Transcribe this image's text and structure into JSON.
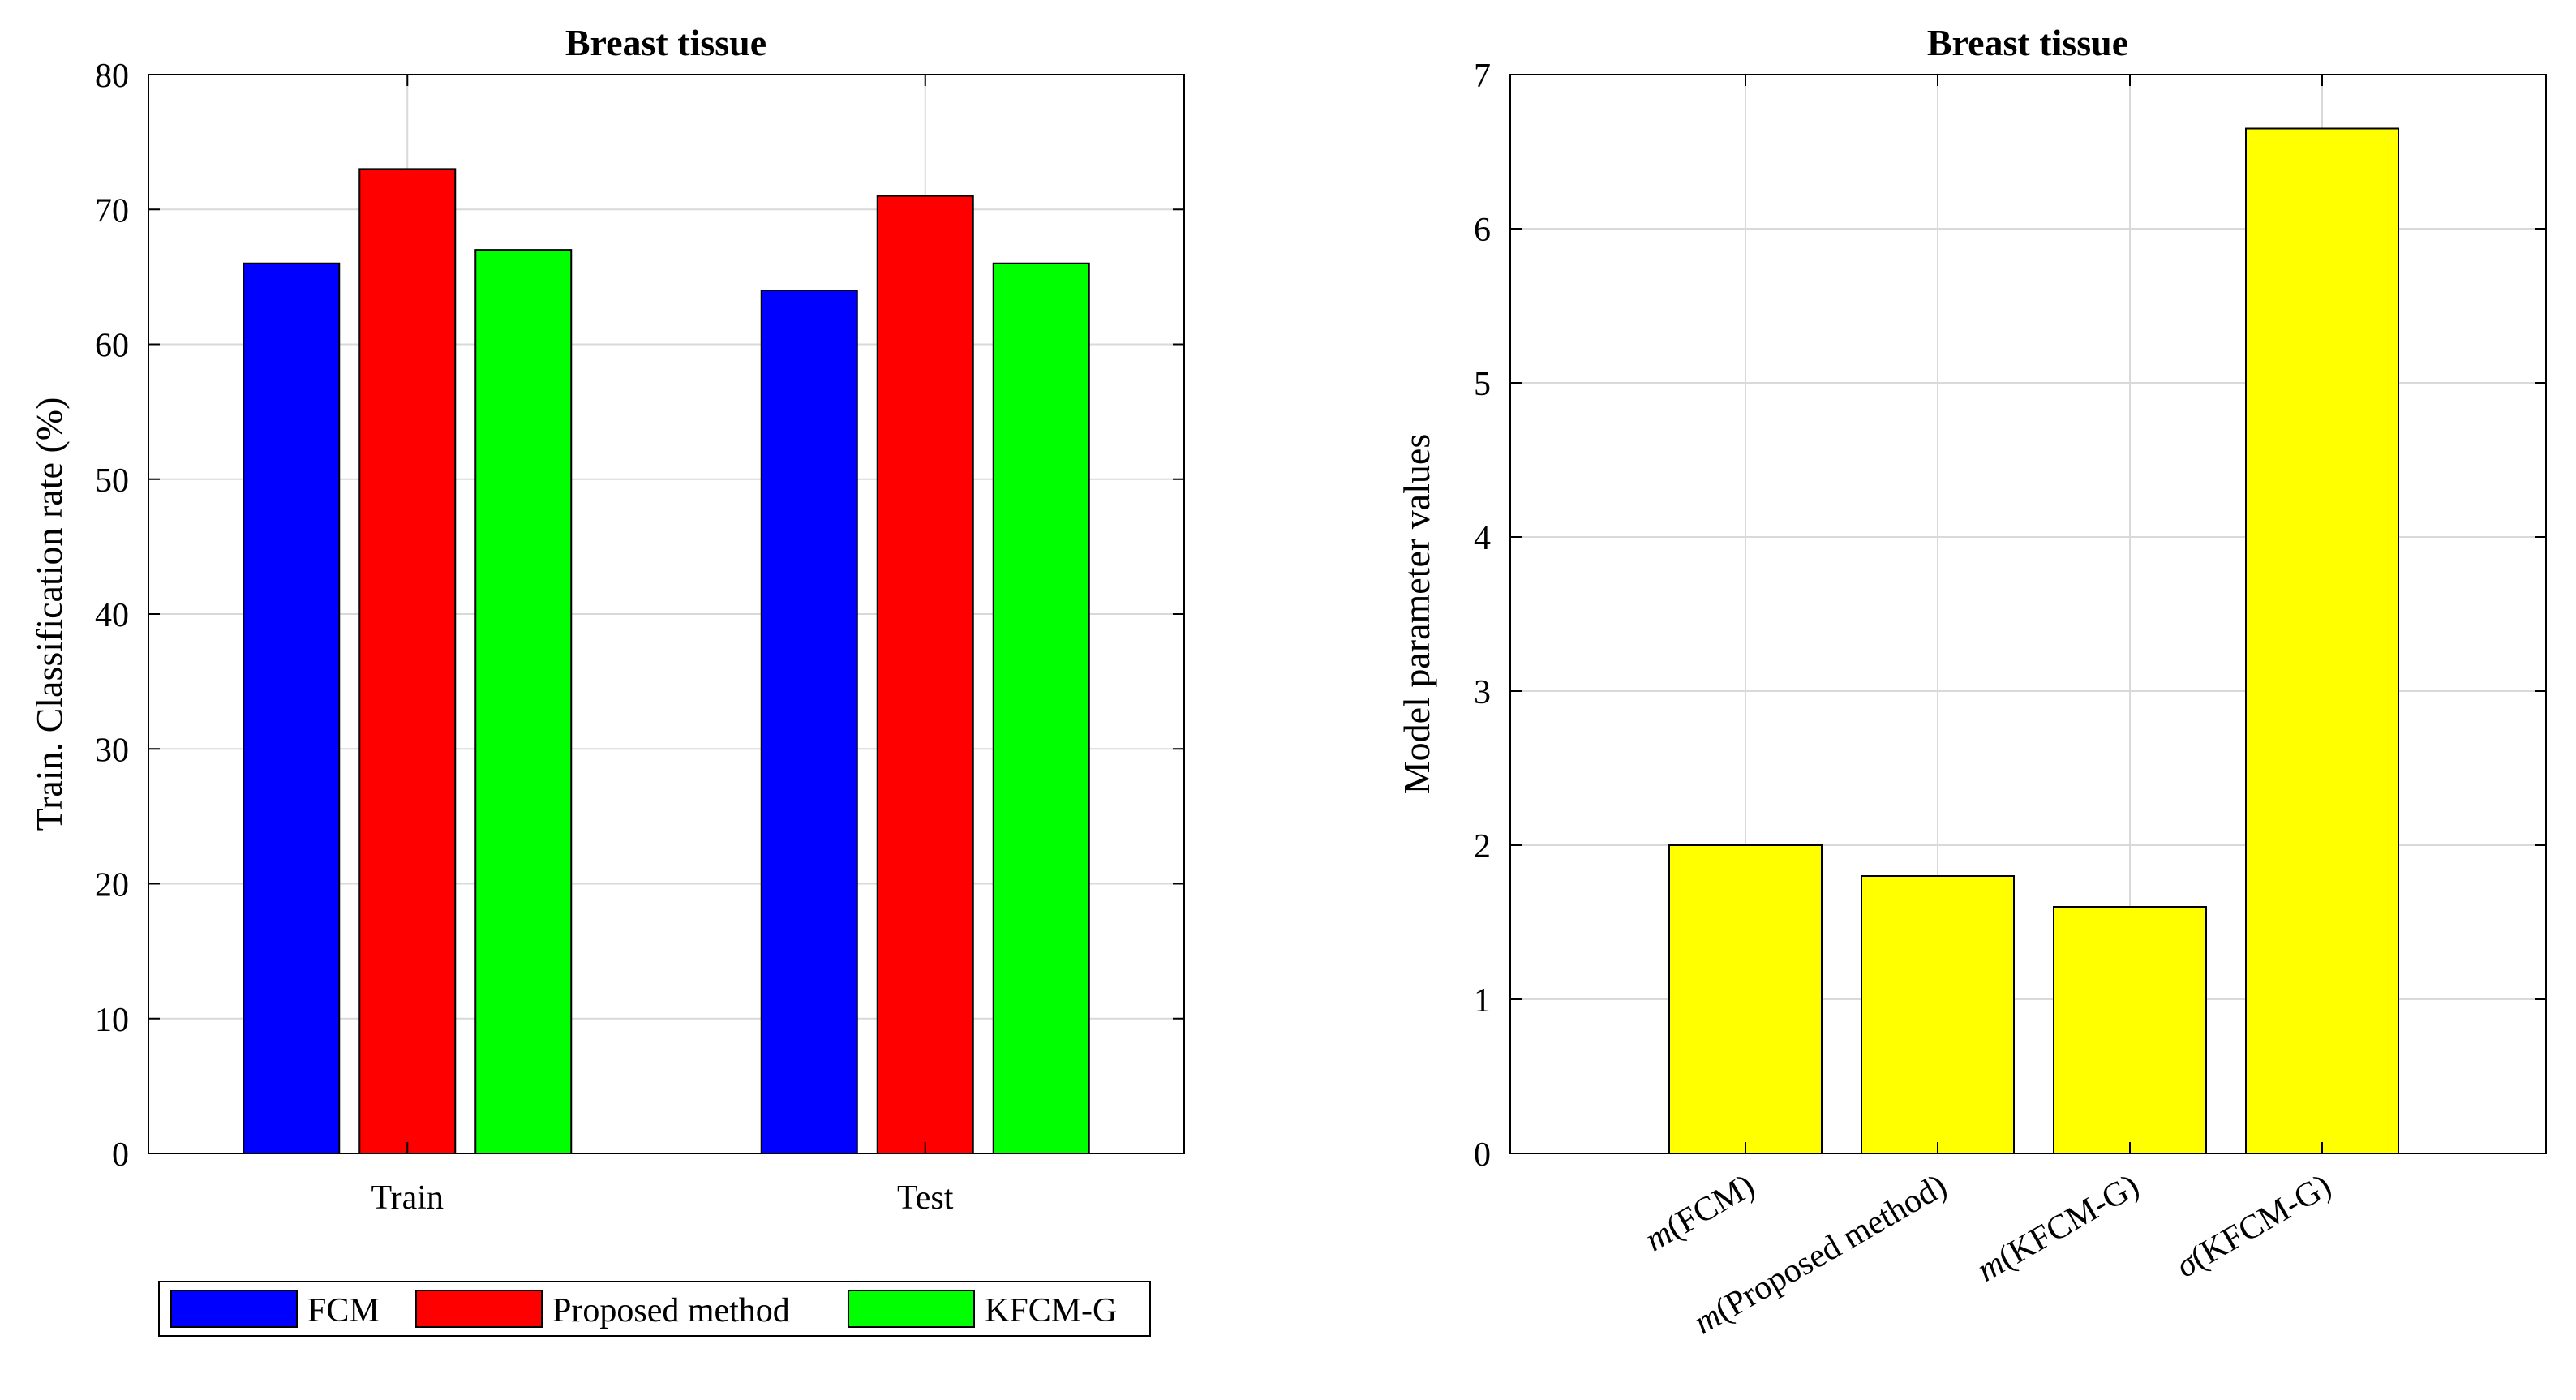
{
  "chart_data": [
    {
      "type": "bar",
      "title": "Breast tissue",
      "xlabel": "",
      "ylabel": "Train. Classification rate (%)",
      "categories": [
        "Train",
        "Test"
      ],
      "ylim": [
        0,
        80
      ],
      "yticks": [
        "0",
        "10",
        "20",
        "30",
        "40",
        "50",
        "60",
        "70",
        "80"
      ],
      "grid": true,
      "legend_position": "bottom",
      "series": [
        {
          "name": "FCM",
          "color": "#0000ff",
          "values": [
            66,
            64
          ]
        },
        {
          "name": "Proposed method",
          "color": "#ff0000",
          "values": [
            73,
            71
          ]
        },
        {
          "name": "KFCM-G",
          "color": "#00ff00",
          "values": [
            67,
            66
          ]
        }
      ]
    },
    {
      "type": "bar",
      "title": "Breast tissue",
      "xlabel": "",
      "ylabel": "Model parameter values",
      "categories": [
        {
          "symbol": "m",
          "rest": "(FCM)"
        },
        {
          "symbol": "m",
          "rest": "(Proposed method)"
        },
        {
          "symbol": "m",
          "rest": "(KFCM-G)"
        },
        {
          "symbol": "σ",
          "rest": "(KFCM-G)"
        }
      ],
      "values": [
        2.0,
        1.8,
        1.6,
        6.65
      ],
      "color": "#ffff00",
      "ylim": [
        0,
        7
      ],
      "yticks": [
        "0",
        "1",
        "2",
        "3",
        "4",
        "5",
        "6",
        "7"
      ],
      "grid": true
    }
  ]
}
